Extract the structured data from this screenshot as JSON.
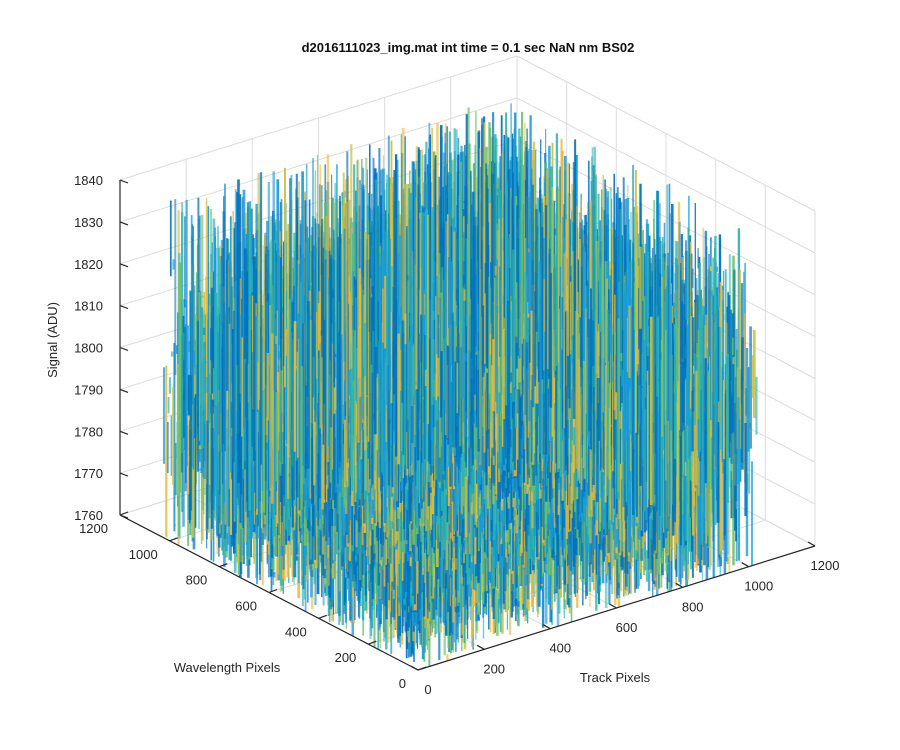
{
  "chart_data": {
    "type": "surface",
    "title": "d2016111023_img.mat int time = 0.1 sec  NaN nm BS02",
    "xlabel": "Track Pixels",
    "ylabel": "Wavelength Pixels",
    "zlabel": "Signal (ADU)",
    "xlim": [
      0,
      1200
    ],
    "ylim": [
      0,
      1200
    ],
    "zlim": [
      1760,
      1840
    ],
    "x_ticks": [
      "0",
      "200",
      "400",
      "600",
      "800",
      "1000",
      "1200"
    ],
    "y_ticks": [
      "0",
      "200",
      "400",
      "600",
      "800",
      "1000",
      "1200"
    ],
    "z_ticks": [
      "1760",
      "1770",
      "1780",
      "1790",
      "1800",
      "1810",
      "1820",
      "1830",
      "1840"
    ],
    "data_extent": {
      "x": [
        1,
        1024
      ],
      "y": [
        1,
        1024
      ]
    },
    "mean_signal": 1795,
    "noise_range": [
      1765,
      1835
    ],
    "grid": true,
    "colormap": "parula",
    "colors": [
      "#0072bd",
      "#1a9bd7",
      "#2cb4b0",
      "#6cc06a",
      "#c8c044",
      "#e8b93a"
    ]
  }
}
